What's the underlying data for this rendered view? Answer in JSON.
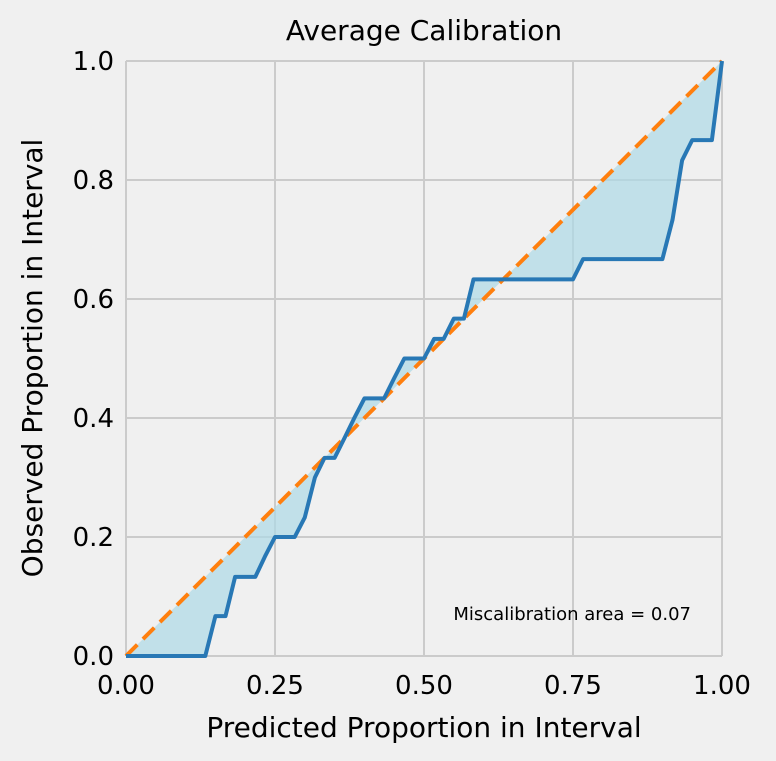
{
  "chart_data": {
    "type": "line",
    "title": "Average Calibration",
    "xlabel": "Predicted Proportion in Interval",
    "ylabel": "Observed Proportion in Interval",
    "xlim": [
      0,
      1
    ],
    "ylim": [
      0,
      1
    ],
    "grid": true,
    "x_ticks": [
      0.0,
      0.25,
      0.5,
      0.75,
      1.0
    ],
    "x_tick_labels": [
      "0.00",
      "0.25",
      "0.50",
      "0.75",
      "1.00"
    ],
    "y_ticks": [
      0.0,
      0.2,
      0.4,
      0.6,
      0.8,
      1.0
    ],
    "y_tick_labels": [
      "0.0",
      "0.2",
      "0.4",
      "0.6",
      "0.8",
      "1.0"
    ],
    "annotation": "Miscalibration area = 0.07",
    "colors": {
      "calibration_line": "#2878b5",
      "ideal_line": "#ff7f0e",
      "fill": "#add8e6",
      "background": "#f0f0f0",
      "grid": "#cbcbcb"
    },
    "series": [
      {
        "x": [
          0.0,
          0.133,
          0.15,
          0.167,
          0.183,
          0.2,
          0.217,
          0.233,
          0.25,
          0.267,
          0.283,
          0.3,
          0.317,
          0.333,
          0.35,
          0.367,
          0.383,
          0.4,
          0.417,
          0.433,
          0.45,
          0.467,
          0.483,
          0.5,
          0.517,
          0.533,
          0.55,
          0.567,
          0.583,
          0.6,
          0.617,
          0.633,
          0.65,
          0.667,
          0.683,
          0.7,
          0.717,
          0.733,
          0.75,
          0.767,
          0.783,
          0.8,
          0.817,
          0.833,
          0.85,
          0.867,
          0.883,
          0.9,
          0.917,
          0.933,
          0.95,
          0.967,
          0.983,
          1.0
        ],
        "y": [
          0.0,
          0.0,
          0.067,
          0.067,
          0.133,
          0.133,
          0.133,
          0.167,
          0.2,
          0.2,
          0.2,
          0.233,
          0.3,
          0.333,
          0.333,
          0.367,
          0.4,
          0.433,
          0.433,
          0.433,
          0.467,
          0.5,
          0.5,
          0.5,
          0.533,
          0.533,
          0.567,
          0.567,
          0.633,
          0.633,
          0.633,
          0.633,
          0.633,
          0.633,
          0.633,
          0.633,
          0.633,
          0.633,
          0.633,
          0.667,
          0.667,
          0.667,
          0.667,
          0.667,
          0.667,
          0.667,
          0.667,
          0.667,
          0.733,
          0.833,
          0.867,
          0.867,
          0.867,
          1.0
        ]
      },
      {
        "x": [
          0.0,
          1.0
        ],
        "y": [
          0.0,
          1.0
        ]
      }
    ]
  }
}
